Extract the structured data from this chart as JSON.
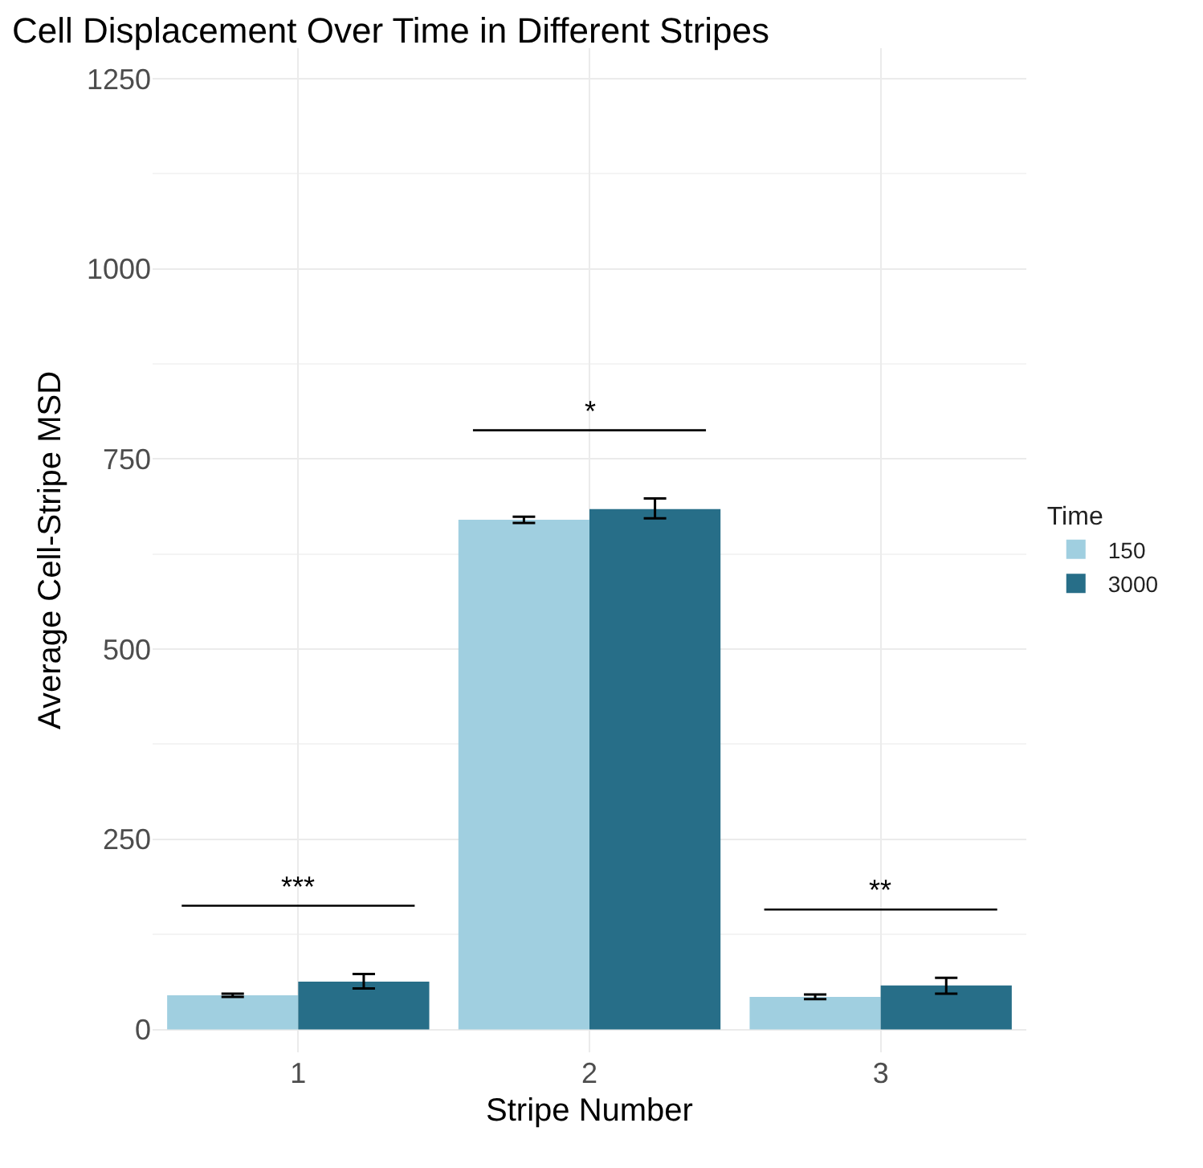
{
  "chart_data": {
    "type": "bar",
    "title": "Cell Displacement Over Time in Different Stripes",
    "xlabel": "Stripe Number",
    "ylabel": "Average Cell-Stripe MSD",
    "legend_title": "Time",
    "categories": [
      "1",
      "2",
      "3"
    ],
    "series": [
      {
        "name": "150",
        "color": "#a0cfe0",
        "values": [
          45,
          670,
          43
        ],
        "errors": [
          2,
          4,
          3
        ]
      },
      {
        "name": "3000",
        "color": "#276e88",
        "values": [
          63,
          684,
          58
        ],
        "errors": [
          [
            54,
            73
          ],
          [
            672,
            698
          ],
          [
            47,
            68
          ]
        ]
      }
    ],
    "ylim": [
      -30,
      1290
    ],
    "yticks": [
      0,
      250,
      500,
      750,
      1000,
      1250
    ],
    "grid": true,
    "legend": "right",
    "annotations": [
      "***",
      "*",
      "**"
    ]
  }
}
